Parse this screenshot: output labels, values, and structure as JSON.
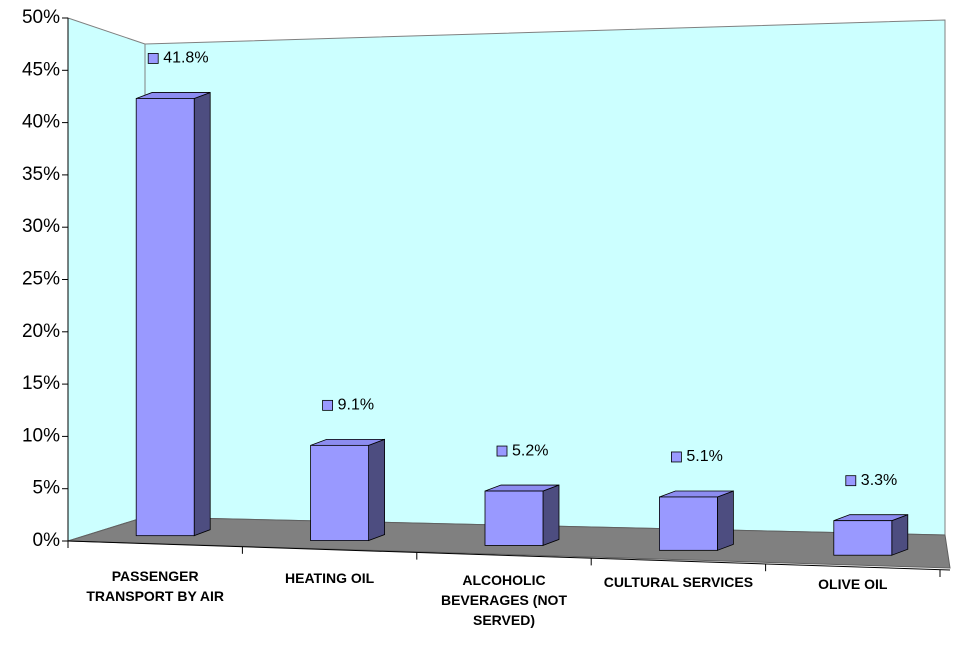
{
  "chart_data": {
    "type": "bar3d",
    "categories": [
      "PASSENGER TRANSPORT BY AIR",
      "HEATING OIL",
      "ALCOHOLIC BEVERAGES (NOT SERVED)",
      "CULTURAL SERVICES",
      "OLIVE OIL"
    ],
    "values": [
      41.8,
      9.1,
      5.2,
      5.1,
      3.3
    ],
    "value_labels": [
      "41.8%",
      "9.1%",
      "5.2%",
      "5.1%",
      "3.3%"
    ],
    "color": "#9999ff",
    "ylim": [
      0,
      50
    ],
    "yticks": [
      {
        "value": 0,
        "label": "0%"
      },
      {
        "value": 5,
        "label": "5%"
      },
      {
        "value": 10,
        "label": "10%"
      },
      {
        "value": 15,
        "label": "15%"
      },
      {
        "value": 20,
        "label": "20%"
      },
      {
        "value": 25,
        "label": "25%"
      },
      {
        "value": 30,
        "label": "30%"
      },
      {
        "value": 35,
        "label": "35%"
      },
      {
        "value": 40,
        "label": "40%"
      },
      {
        "value": 45,
        "label": "45%"
      },
      {
        "value": 50,
        "label": "50%"
      }
    ],
    "grid": false
  }
}
